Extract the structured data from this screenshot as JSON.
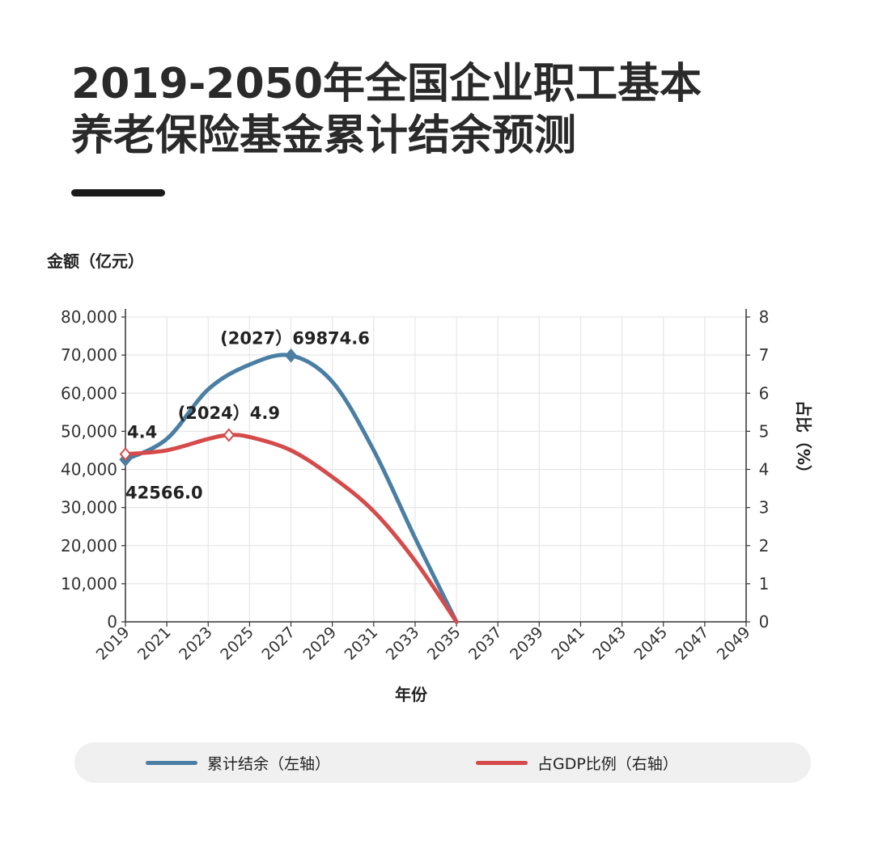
{
  "title": "2019-2050年全国企业职工基本养老保险基金累计结余预测",
  "colors": {
    "balance": "#4a7ea3",
    "gdp": "#d54a4a",
    "grid": "#e6e6e6",
    "axis": "#333333"
  },
  "legend": {
    "items": [
      {
        "label": "累计结余（左轴）",
        "color": "#4a7ea3"
      },
      {
        "label": "占GDP比例（右轴）",
        "color": "#d54a4a"
      }
    ]
  },
  "chart_data": {
    "type": "line",
    "xlabel": "年份",
    "ylabel_left": "金额（亿元）",
    "ylabel_right": "占比（%）",
    "x_ticks": [
      "2019",
      "2021",
      "2023",
      "2025",
      "2027",
      "2029",
      "2031",
      "2033",
      "2035",
      "2037",
      "2039",
      "2041",
      "2043",
      "2045",
      "2047",
      "2049"
    ],
    "xlim": [
      2019,
      2049
    ],
    "y_left": {
      "ticks": [
        "0",
        "10,000",
        "20,000",
        "30,000",
        "40,000",
        "50,000",
        "60,000",
        "70,000",
        "80,000"
      ],
      "lim": [
        0,
        80000
      ]
    },
    "y_right": {
      "ticks": [
        "0",
        "1",
        "2",
        "3",
        "4",
        "5",
        "6",
        "7",
        "8"
      ],
      "lim": [
        0,
        8
      ]
    },
    "grid": true,
    "legend_position": "bottom",
    "series": [
      {
        "name": "累计结余（左轴）",
        "axis": "left",
        "x": [
          2019,
          2021,
          2023,
          2025,
          2027,
          2029,
          2031,
          2033,
          2035
        ],
        "values": [
          42566.0,
          48000,
          61000,
          67500,
          69874.6,
          63000,
          45000,
          22000,
          0
        ]
      },
      {
        "name": "占GDP比例（右轴）",
        "axis": "right",
        "x": [
          2019,
          2021,
          2023,
          2024,
          2025,
          2027,
          2029,
          2031,
          2033,
          2035
        ],
        "values": [
          4.4,
          4.5,
          4.8,
          4.9,
          4.85,
          4.5,
          3.8,
          2.9,
          1.6,
          0
        ]
      }
    ],
    "annotations": [
      {
        "text": "(2027）69874.6",
        "x": 2027,
        "series": 0
      },
      {
        "text": "(2024）4.9",
        "x": 2024,
        "series": 1
      },
      {
        "text": "4.4",
        "x": 2019,
        "series": 1
      },
      {
        "text": "42566.0",
        "x": 2019,
        "series": 0
      }
    ],
    "markers": [
      {
        "series": 0,
        "x": 2019
      },
      {
        "series": 0,
        "x": 2027
      },
      {
        "series": 1,
        "x": 2019
      },
      {
        "series": 1,
        "x": 2024
      }
    ]
  }
}
